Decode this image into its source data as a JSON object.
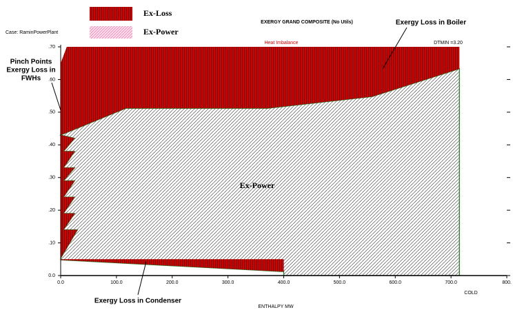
{
  "chart_data": {
    "type": "area",
    "title": "EXERGY GRAND COMPOSITE (No Utils)",
    "x_label": "ENTHALPY MW",
    "x_side_label": "COLD",
    "case": "Case: RaminPowerPlant",
    "heat_note": "Heat Imbalance",
    "dtmin": "DTMIN =3.20",
    "annotations": {
      "boiler": "Exergy Loss in Boiler",
      "fwh": [
        "Pinch  Points",
        "Exergy Loss in",
        "FWHs"
      ],
      "condenser": "Exergy Loss in Condenser",
      "power": "Ex-Power"
    },
    "xlim": [
      0,
      800
    ],
    "ylim": [
      0,
      0.7
    ],
    "xticks": [
      {
        "value": 0,
        "label": "0.0"
      },
      {
        "value": 100,
        "label": "100.0"
      },
      {
        "value": 200,
        "label": "200.0"
      },
      {
        "value": 300,
        "label": "300.0"
      },
      {
        "value": 400,
        "label": "400.0"
      },
      {
        "value": 500,
        "label": "500.0"
      },
      {
        "value": 600,
        "label": "600.0"
      },
      {
        "value": 700,
        "label": "700.0"
      },
      {
        "value": 800,
        "label": "800."
      }
    ],
    "yticks": [
      {
        "value": 0,
        "label": "0.0"
      },
      {
        "value": 0.1,
        "label": ".10"
      },
      {
        "value": 0.2,
        "label": ".20"
      },
      {
        "value": 0.3,
        "label": ".30"
      },
      {
        "value": 0.4,
        "label": ".40"
      },
      {
        "value": 0.5,
        "label": ".50"
      },
      {
        "value": 0.6,
        "label": ".60"
      },
      {
        "value": 0.7,
        "label": ".70"
      }
    ],
    "series": [
      {
        "name": "Ex-Loss",
        "color": "#d40000",
        "regions": [
          {
            "x": [
              0,
              11,
              715,
              715,
              559,
              371,
              117,
              0,
              25,
              5,
              25,
              5,
              25,
              5,
              25,
              5,
              25,
              5,
              25,
              5,
              30,
              0
            ],
            "values": [
              0.65,
              0.7,
              0.7,
              0.633,
              0.548,
              0.512,
              0.512,
              0.43,
              0.42,
              0.38,
              0.38,
              0.33,
              0.33,
              0.29,
              0.29,
              0.24,
              0.24,
              0.19,
              0.19,
              0.14,
              0.14,
              0.053
            ]
          },
          {
            "x": [
              0,
              400,
              400,
              0
            ],
            "values": [
              0.05,
              0.05,
              0.012,
              0.048
            ]
          }
        ]
      },
      {
        "name": "Ex-Power",
        "color": "#555555",
        "regions": [
          {
            "x": [
              0,
              30,
              5,
              25,
              5,
              25,
              5,
              25,
              5,
              25,
              5,
              25,
              5,
              25,
              0,
              117,
              371,
              559,
              715,
              715,
              400,
              400,
              0
            ],
            "values": [
              0.053,
              0.14,
              0.14,
              0.19,
              0.19,
              0.24,
              0.24,
              0.29,
              0.29,
              0.33,
              0.33,
              0.38,
              0.38,
              0.42,
              0.43,
              0.512,
              0.512,
              0.548,
              0.633,
              0,
              0,
              0.012,
              0.048
            ]
          }
        ]
      }
    ]
  }
}
